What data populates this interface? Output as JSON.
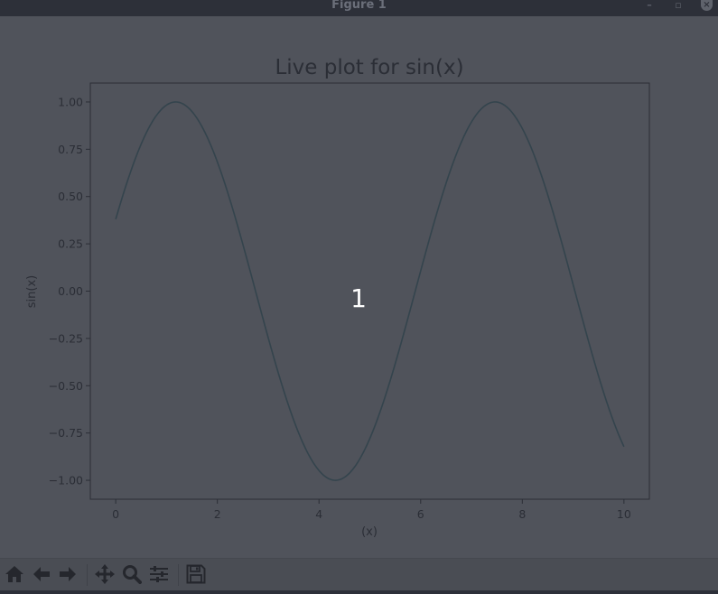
{
  "window": {
    "title": "Figure 1",
    "minimize_label": "–",
    "maximize_label": "▫",
    "close_label": "×"
  },
  "overlay_text": "1",
  "chart_data": {
    "type": "line",
    "title": "Live plot for sin(x)",
    "xlabel": "(x)",
    "ylabel": "sin(x)",
    "xlim": [
      -0.5,
      10.5
    ],
    "ylim": [
      -1.1,
      1.1
    ],
    "xticks": [
      0,
      2,
      4,
      6,
      8,
      10
    ],
    "xtick_labels": [
      "0",
      "2",
      "4",
      "6",
      "8",
      "10"
    ],
    "yticks": [
      1.0,
      0.75,
      0.5,
      0.25,
      0.0,
      -0.25,
      -0.5,
      -0.75,
      -1.0
    ],
    "ytick_labels": [
      "1.00",
      "0.75",
      "0.50",
      "0.25",
      "0.00",
      "−0.25",
      "−0.50",
      "−0.75",
      "−1.00"
    ],
    "grid": false,
    "series": [
      {
        "function": "sin(x + 0.39)",
        "x_start": 0,
        "x_end": 10,
        "color": "#34444d"
      }
    ]
  },
  "colors": {
    "figure_bg": "#50535b",
    "axes_frame": "#2b2e36",
    "text": "#2b2e36",
    "line": "#34444d",
    "overlay_text": "#ffffff",
    "toolbar_icon": "#25272d"
  },
  "toolbar": {
    "icons": [
      "home-icon",
      "back-arrow-icon",
      "forward-arrow-icon",
      "pan-move-icon",
      "zoom-magnifier-icon",
      "subplots-config-icon",
      "save-floppy-icon"
    ]
  }
}
